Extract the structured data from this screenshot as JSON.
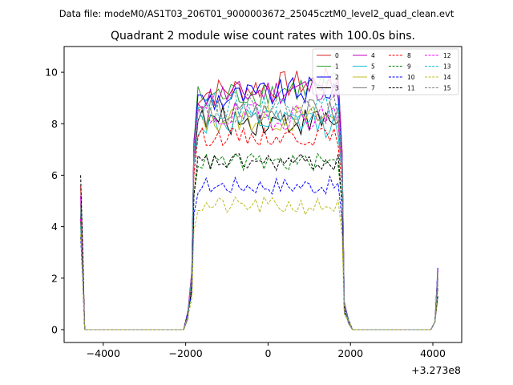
{
  "header": "Data file: modeM0/AS1T03_206T01_9000003672_25045cztM0_level2_quad_clean.evt",
  "chart_data": {
    "type": "line",
    "title": "Quadrant 2 module wise count rates with 100.0s bins.",
    "xlabel": "",
    "ylabel": "",
    "x_offset_label": "+3.273e8",
    "xlim": [
      -4950,
      4700
    ],
    "ylim": [
      -0.5,
      11.0
    ],
    "xticks": [
      -4000,
      -2000,
      0,
      2000,
      4000
    ],
    "xtick_labels": [
      "−4000",
      "−2000",
      "0",
      "2000",
      "4000"
    ],
    "yticks": [
      0,
      2,
      4,
      6,
      8,
      10
    ],
    "ytick_labels": [
      "0",
      "2",
      "4",
      "6",
      "8",
      "10"
    ],
    "legend_position": "top-right",
    "series": [
      {
        "name": "0",
        "color": "#d62728",
        "dash": "solid",
        "levels": {
          "start": 5.6,
          "plateau": 9.2,
          "end": 2.3
        }
      },
      {
        "name": "1",
        "color": "#2ca02c",
        "dash": "solid",
        "levels": {
          "start": 4.9,
          "plateau": 9.0,
          "end": 2.2
        }
      },
      {
        "name": "2",
        "color": "#0000ff",
        "dash": "solid",
        "levels": {
          "start": 4.5,
          "plateau": 8.9,
          "end": 2.4
        }
      },
      {
        "name": "3",
        "color": "#000000",
        "dash": "solid",
        "levels": {
          "start": 4.4,
          "plateau": 8.1,
          "end": 1.3
        }
      },
      {
        "name": "4",
        "color": "#c000c0",
        "dash": "solid",
        "levels": {
          "start": 5.2,
          "plateau": 9.0,
          "end": 2.3
        }
      },
      {
        "name": "5",
        "color": "#17becf",
        "dash": "solid",
        "levels": {
          "start": 4.6,
          "plateau": 8.0,
          "end": 2.2
        }
      },
      {
        "name": "6",
        "color": "#bcbd22",
        "dash": "solid",
        "levels": {
          "start": 4.0,
          "plateau": 8.2,
          "end": 2.1
        }
      },
      {
        "name": "7",
        "color": "#7f7f7f",
        "dash": "solid",
        "levels": {
          "start": 4.7,
          "plateau": 8.4,
          "end": 2.2
        }
      },
      {
        "name": "8",
        "color": "#ff0000",
        "dash": "dashed",
        "levels": {
          "start": 4.3,
          "plateau": 7.5,
          "end": 2.0
        }
      },
      {
        "name": "9",
        "color": "#008000",
        "dash": "dashed",
        "levels": {
          "start": 4.2,
          "plateau": 6.5,
          "end": 1.9
        }
      },
      {
        "name": "10",
        "color": "#0000ff",
        "dash": "dashed",
        "levels": {
          "start": 3.6,
          "plateau": 5.6,
          "end": 1.6
        }
      },
      {
        "name": "11",
        "color": "#000000",
        "dash": "dashed",
        "levels": {
          "start": 6.0,
          "plateau": 6.5,
          "end": 1.7
        }
      },
      {
        "name": "12",
        "color": "#ff00ff",
        "dash": "dashed",
        "levels": {
          "start": 4.3,
          "plateau": 8.3,
          "end": 2.0
        }
      },
      {
        "name": "13",
        "color": "#17becf",
        "dash": "dashed",
        "levels": {
          "start": 4.0,
          "plateau": 8.7,
          "end": 2.0
        }
      },
      {
        "name": "14",
        "color": "#bcbd22",
        "dash": "dashed",
        "levels": {
          "start": 3.7,
          "plateau": 4.8,
          "end": 1.5
        }
      },
      {
        "name": "15",
        "color": "#7f7f7f",
        "dash": "dashed",
        "levels": {
          "start": 4.1,
          "plateau": 8.6,
          "end": 2.0
        }
      }
    ]
  }
}
